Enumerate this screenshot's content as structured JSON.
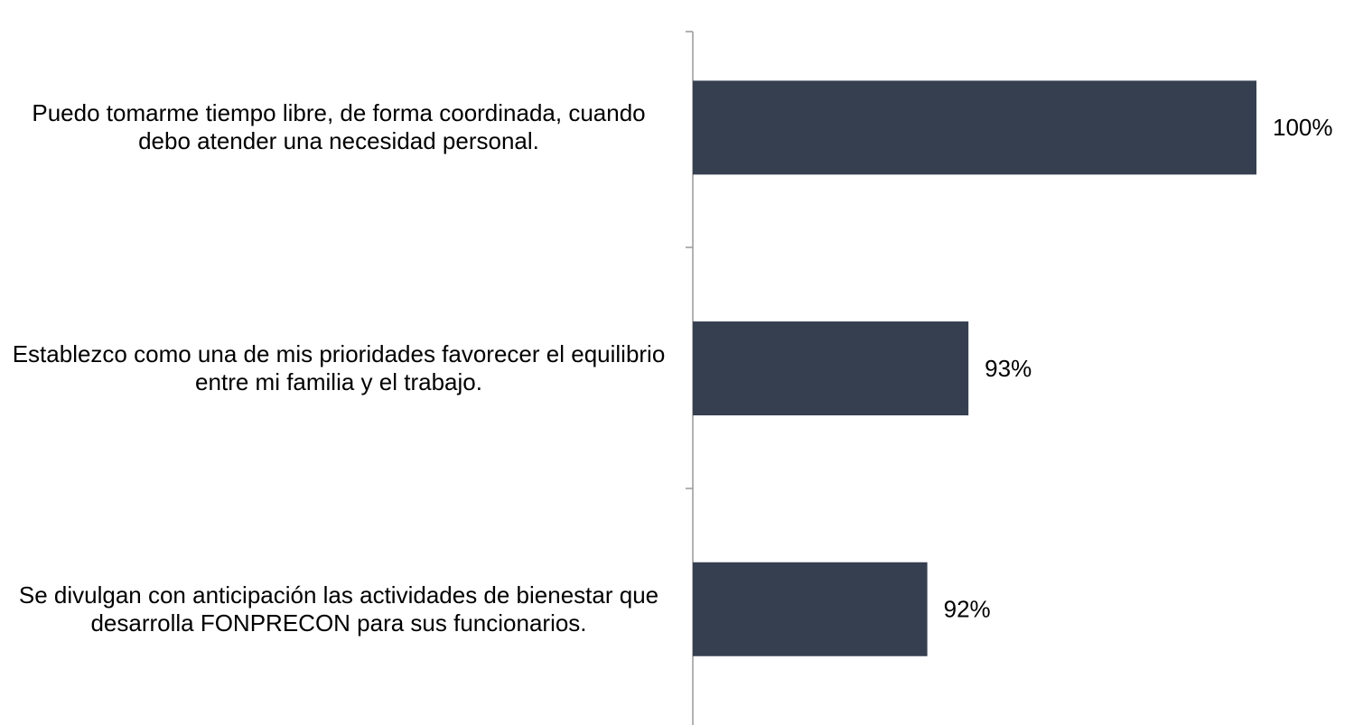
{
  "chart_data": {
    "type": "hbar",
    "categories": [
      "Puedo tomarme tiempo libre, de forma coordinada, cuando debo atender una necesidad personal.",
      "Establezco como una de mis prioridades favorecer el equilibrio entre mi familia y el trabajo.",
      "Se divulgan con anticipación las actividades de bienestar que desarrolla FONPRECON para sus funcionarios."
    ],
    "values": [
      100,
      93,
      92
    ],
    "value_labels": [
      "100%",
      "93%",
      "92%"
    ],
    "color": "#353f50",
    "xlim": [
      86.3,
      100
    ]
  }
}
